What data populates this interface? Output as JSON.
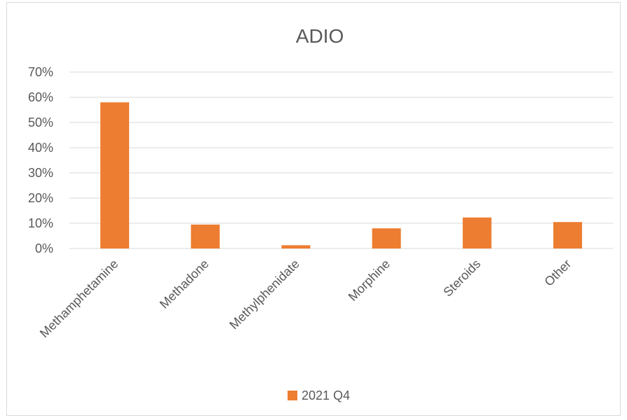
{
  "chart_data": {
    "type": "bar",
    "title": "ADIO",
    "categories": [
      "Methamphetamine",
      "Methadone",
      "Methylphenidate",
      "Morphine",
      "Steroids",
      "Other"
    ],
    "series": [
      {
        "name": "2021 Q4",
        "values": [
          58,
          9.5,
          1.3,
          8,
          12.3,
          10.5
        ],
        "color": "#ed7d31"
      }
    ],
    "yticks": [
      "0%",
      "10%",
      "20%",
      "30%",
      "40%",
      "50%",
      "60%",
      "70%"
    ],
    "ylim": [
      0,
      70
    ],
    "grid": true,
    "legend_position": "bottom",
    "xlabel": "",
    "ylabel": ""
  }
}
